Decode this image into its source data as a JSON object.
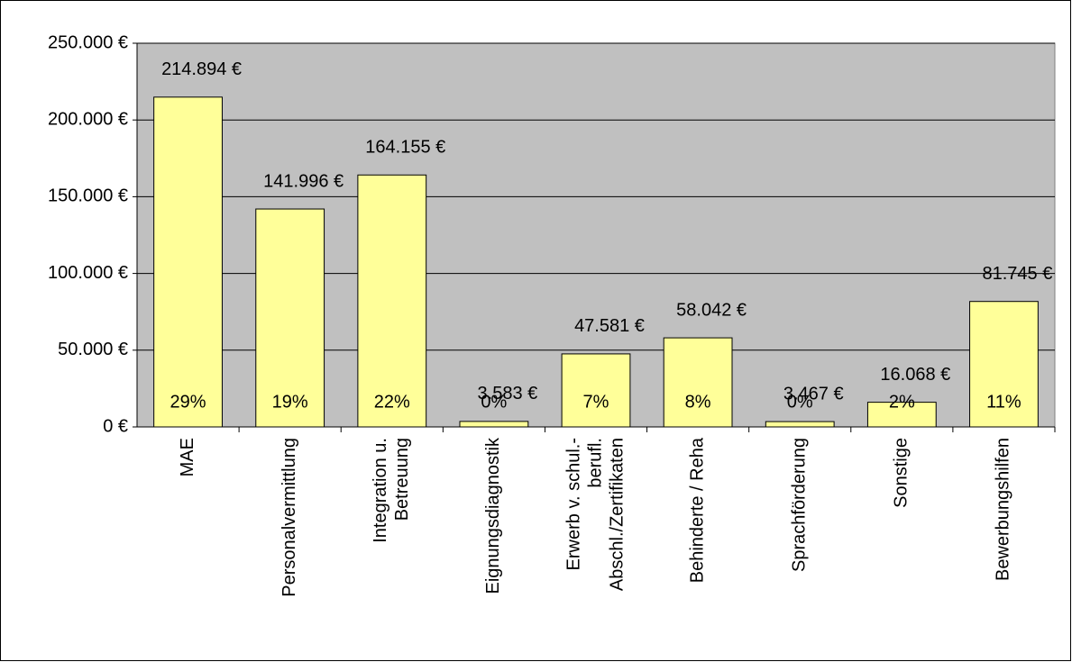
{
  "chart_data": {
    "type": "bar",
    "categories": [
      [
        "MAE"
      ],
      [
        "Personalvermittlung"
      ],
      [
        "Integration u.",
        "Betreuung"
      ],
      [
        "Eignungsdiagnostik"
      ],
      [
        "Erwerb v. schul.-",
        "berufl.",
        "Abschl./Zertifikaten"
      ],
      [
        "Behinderte / Reha"
      ],
      [
        "Sprachförderung"
      ],
      [
        "Sonstige"
      ],
      [
        "Bewerbungshilfen"
      ]
    ],
    "values": [
      214894,
      141996,
      164155,
      3583,
      47581,
      58042,
      3467,
      16068,
      81745
    ],
    "value_labels": [
      "214.894 €",
      "141.996 €",
      "164.155 €",
      "3.583 €",
      "47.581 €",
      "58.042 €",
      "3.467 €",
      "16.068 €",
      "81.745 €"
    ],
    "percent_labels": [
      "29%",
      "19%",
      "22%",
      "0%",
      "7%",
      "8%",
      "0%",
      "2%",
      "11%"
    ],
    "color": "#ffff99",
    "ylim": [
      0,
      250000
    ],
    "yticks": [
      {
        "value": 0,
        "label": "0 €"
      },
      {
        "value": 50000,
        "label": "50.000 €"
      },
      {
        "value": 100000,
        "label": "100.000 €"
      },
      {
        "value": 150000,
        "label": "150.000 €"
      },
      {
        "value": 200000,
        "label": "200.000 €"
      },
      {
        "value": 250000,
        "label": "250.000 €"
      }
    ],
    "grid": true
  }
}
